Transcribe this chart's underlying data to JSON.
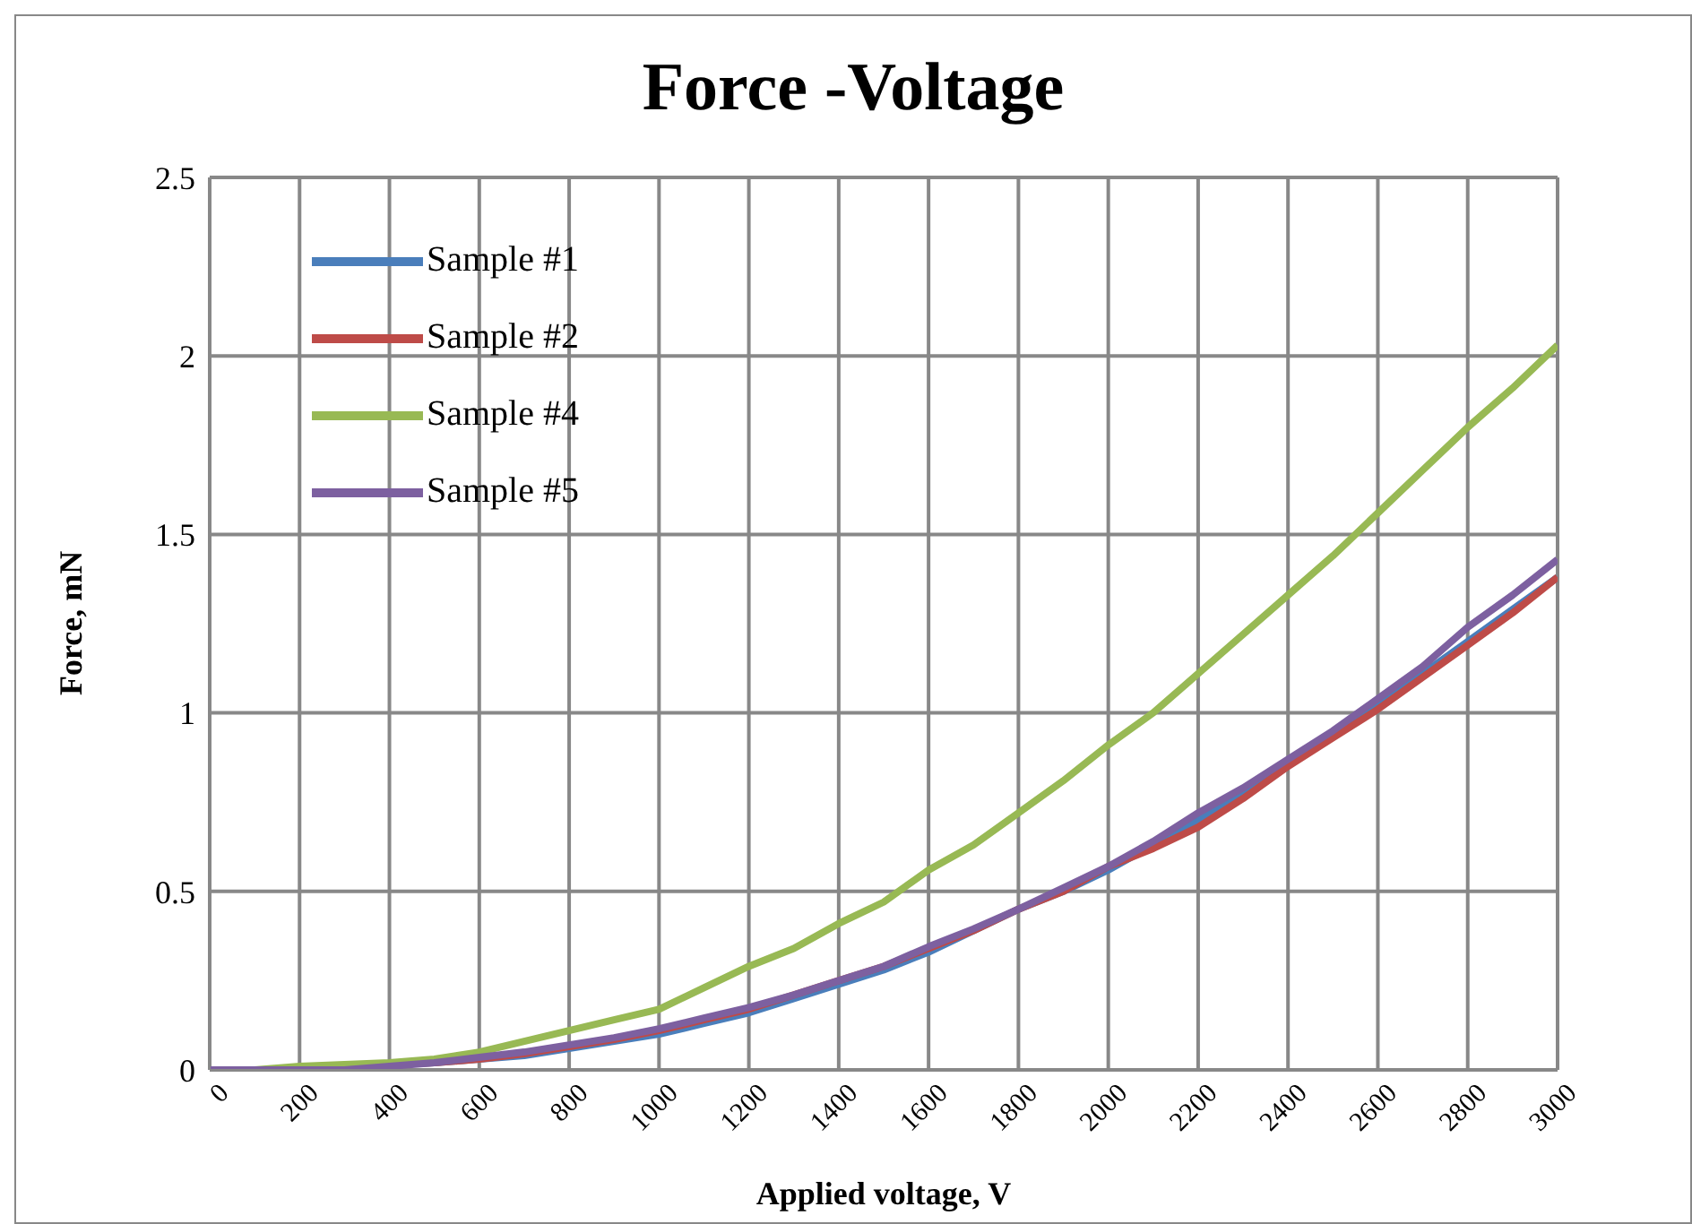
{
  "chart_data": {
    "type": "line",
    "title": "Force -Voltage",
    "xlabel": "Applied voltage, V",
    "ylabel": "Force, mN",
    "x": [
      0,
      100,
      200,
      300,
      400,
      500,
      600,
      700,
      800,
      900,
      1000,
      1100,
      1200,
      1300,
      1400,
      1500,
      1600,
      1700,
      1800,
      1900,
      2000,
      2100,
      2200,
      2300,
      2400,
      2500,
      2600,
      2700,
      2800,
      2900,
      3000
    ],
    "series": [
      {
        "name": "Sample #1",
        "color": "#4a7ebb",
        "values": [
          null,
          null,
          null,
          null,
          0.015,
          0.02,
          0.03,
          0.04,
          0.06,
          0.08,
          0.1,
          0.13,
          0.16,
          0.2,
          0.24,
          0.28,
          0.33,
          0.39,
          0.45,
          0.5,
          0.56,
          0.63,
          0.7,
          0.78,
          0.86,
          0.94,
          1.02,
          1.11,
          1.2,
          1.29,
          1.38
        ]
      },
      {
        "name": "Sample #2",
        "color": "#be4b48",
        "values": [
          null,
          null,
          null,
          null,
          0.015,
          0.02,
          0.03,
          0.045,
          0.065,
          0.085,
          0.11,
          0.14,
          0.17,
          0.21,
          0.25,
          0.29,
          0.34,
          0.39,
          0.45,
          0.5,
          0.57,
          0.62,
          0.68,
          0.76,
          0.85,
          0.93,
          1.01,
          1.1,
          1.19,
          1.28,
          1.38
        ]
      },
      {
        "name": "Sample #4",
        "color": "#98b954",
        "values": [
          0,
          0,
          0.01,
          0.015,
          0.02,
          0.03,
          0.05,
          0.08,
          0.11,
          0.14,
          0.17,
          0.23,
          0.29,
          0.34,
          0.41,
          0.47,
          0.56,
          0.63,
          0.72,
          0.81,
          0.91,
          1.0,
          1.11,
          1.22,
          1.33,
          1.44,
          1.56,
          1.68,
          1.8,
          1.91,
          2.03
        ]
      },
      {
        "name": "Sample #5",
        "color": "#7d60a0",
        "values": [
          0,
          0,
          0,
          0,
          0.01,
          0.02,
          0.035,
          0.05,
          0.07,
          0.09,
          0.115,
          0.145,
          0.175,
          0.21,
          0.25,
          0.29,
          0.345,
          0.395,
          0.45,
          0.51,
          0.57,
          0.64,
          0.72,
          0.79,
          0.87,
          0.95,
          1.04,
          1.13,
          1.24,
          1.33,
          1.43
        ]
      }
    ],
    "xlim": [
      0,
      3000
    ],
    "xticks": [
      0,
      200,
      400,
      600,
      800,
      1000,
      1200,
      1400,
      1600,
      1800,
      2000,
      2200,
      2400,
      2600,
      2800,
      3000
    ],
    "ylim": [
      0,
      2.5
    ],
    "yticks": [
      0,
      0.5,
      1,
      1.5,
      2,
      2.5
    ],
    "grid": true,
    "legend": "top left",
    "marker": "none",
    "line_style": "solid"
  }
}
